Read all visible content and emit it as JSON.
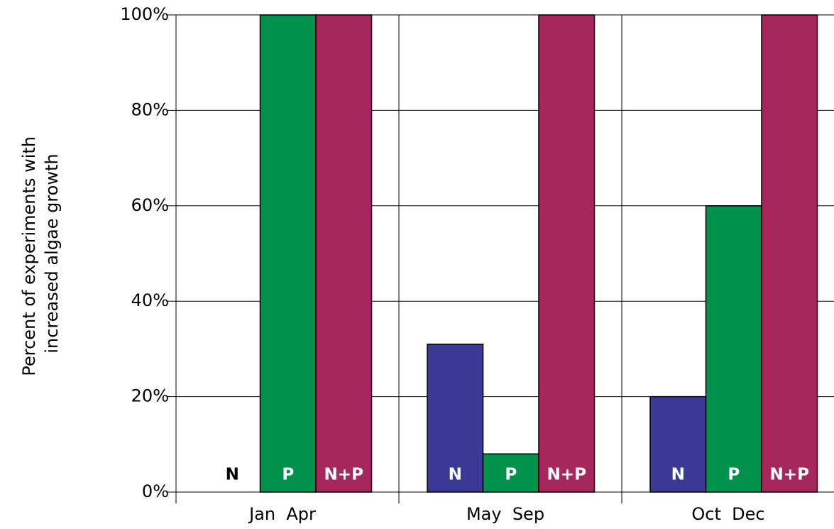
{
  "chart_data": {
    "type": "bar",
    "y_label": [
      "Percent of experiments with",
      "increased algae growth"
    ],
    "categories": [
      "Jan  Apr",
      "May  Sep",
      "Oct  Dec"
    ],
    "series": [
      {
        "name": "N",
        "color": "#3a3a96",
        "values": [
          0,
          31,
          20
        ]
      },
      {
        "name": "P",
        "color": "#00914d",
        "values": [
          100,
          8,
          60
        ]
      },
      {
        "name": "N+P",
        "color": "#a6275b",
        "values": [
          100,
          100,
          100
        ]
      }
    ],
    "ylim": [
      0,
      100
    ],
    "yticks": [
      {
        "value": 0,
        "label": "0%"
      },
      {
        "value": 20,
        "label": "20%"
      },
      {
        "value": 40,
        "label": "40%"
      },
      {
        "value": 60,
        "label": "60%"
      },
      {
        "value": 80,
        "label": "80%"
      },
      {
        "value": 100,
        "label": "100%"
      }
    ],
    "grid": true
  }
}
